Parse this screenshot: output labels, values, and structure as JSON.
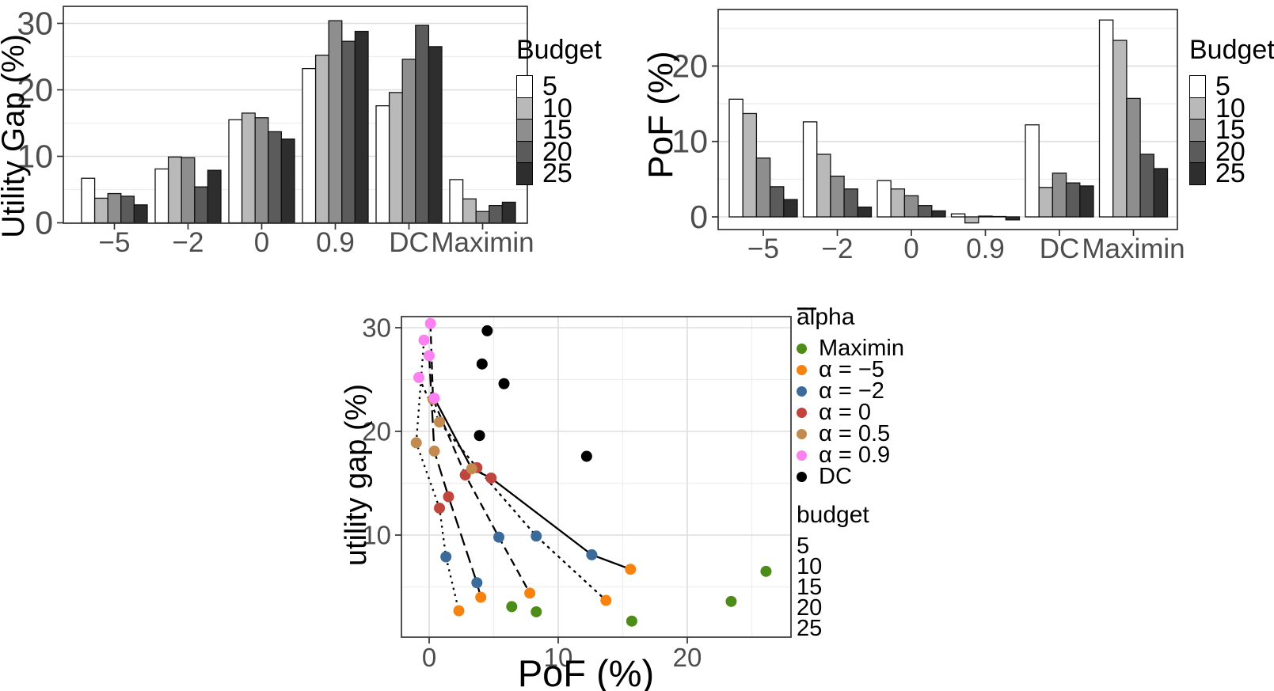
{
  "figure": {
    "background": "#ffffff",
    "tick_label_color": "#4d4d4d",
    "panel_border_color": "#333333",
    "grid_major_color": "#dedede",
    "grid_minor_color": "#eeeeee"
  },
  "chart_data": [
    {
      "id": "utility_gap_bars",
      "type": "bar",
      "ylabel": "Utility Gap (%)",
      "categories": [
        "−5",
        "−2",
        "0",
        "0.9",
        "DC",
        "Maximin"
      ],
      "legend": {
        "title": "Budget",
        "labels": [
          "5",
          "10",
          "15",
          "20",
          "25"
        ]
      },
      "fills": [
        "#ffffff",
        "#b9b9b9",
        "#8e8e8e",
        "#5b5b5b",
        "#2e2e2e"
      ],
      "series": [
        {
          "name": "5",
          "values": [
            6.7,
            8.1,
            15.5,
            23.2,
            17.6,
            6.5
          ]
        },
        {
          "name": "10",
          "values": [
            3.7,
            9.9,
            16.5,
            25.2,
            19.6,
            3.6
          ]
        },
        {
          "name": "15",
          "values": [
            4.4,
            9.8,
            15.8,
            30.4,
            24.6,
            1.7
          ]
        },
        {
          "name": "20",
          "values": [
            4.0,
            5.4,
            13.7,
            27.3,
            29.7,
            2.6
          ]
        },
        {
          "name": "25",
          "values": [
            2.7,
            7.9,
            12.6,
            28.8,
            26.5,
            3.1
          ]
        }
      ],
      "y_ticks": [
        0,
        10,
        20,
        30
      ],
      "y_minor": [
        5,
        15,
        25
      ],
      "ylim": [
        0,
        32.5
      ],
      "grid": true
    },
    {
      "id": "pof_bars",
      "type": "bar",
      "ylabel": "PoF (%)",
      "categories": [
        "−5",
        "−2",
        "0",
        "0.9",
        "DC",
        "Maximin"
      ],
      "legend": {
        "title": "Budget",
        "labels": [
          "5",
          "10",
          "15",
          "20",
          "25"
        ]
      },
      "fills": [
        "#ffffff",
        "#b9b9b9",
        "#8e8e8e",
        "#5b5b5b",
        "#2e2e2e"
      ],
      "series": [
        {
          "name": "5",
          "values": [
            15.6,
            12.6,
            4.8,
            0.4,
            12.2,
            26.1
          ]
        },
        {
          "name": "10",
          "values": [
            13.7,
            8.3,
            3.7,
            -0.8,
            3.9,
            23.4
          ]
        },
        {
          "name": "15",
          "values": [
            7.8,
            5.4,
            2.8,
            0.1,
            5.8,
            15.7
          ]
        },
        {
          "name": "20",
          "values": [
            4.0,
            3.7,
            1.5,
            0.05,
            4.5,
            8.3
          ]
        },
        {
          "name": "25",
          "values": [
            2.3,
            1.3,
            0.8,
            -0.4,
            4.1,
            6.4
          ]
        }
      ],
      "y_ticks": [
        0,
        10,
        20
      ],
      "y_minor": [
        5,
        15,
        25
      ],
      "ylim": [
        -1.7,
        27.5
      ],
      "grid": true
    },
    {
      "id": "tradeoff_scatter",
      "type": "scatter",
      "xlabel": "PoF (%)",
      "ylabel": "utility gap (%)",
      "x_ticks": [
        0,
        10,
        20
      ],
      "x_minor": [
        5,
        15,
        25
      ],
      "y_ticks": [
        10,
        20,
        30
      ],
      "y_minor": [
        5,
        15,
        25
      ],
      "xlim": [
        -2.3,
        28.0
      ],
      "ylim": [
        0.15,
        31.1
      ],
      "grid": true,
      "legend_alpha": {
        "title": "alpha"
      },
      "legend_budget": {
        "title": "budget",
        "entries": [
          {
            "label": "5",
            "linetype": "solid"
          },
          {
            "label": "10",
            "linetype": "dash22"
          },
          {
            "label": "15",
            "linetype": "dash"
          },
          {
            "label": "20",
            "linetype": "longdash"
          },
          {
            "label": "25",
            "linetype": "dotted"
          }
        ]
      },
      "budgets": [
        5,
        10,
        15,
        20,
        25
      ],
      "series": [
        {
          "name": "Maximin",
          "color": "#4c8c17",
          "connected": false,
          "points": [
            [
              26.1,
              6.5
            ],
            [
              23.4,
              3.6
            ],
            [
              15.7,
              1.7
            ],
            [
              8.3,
              2.6
            ],
            [
              6.4,
              3.1
            ]
          ]
        },
        {
          "name": "α = −5",
          "color": "#f8820e",
          "connected": true,
          "points": [
            [
              15.6,
              6.7
            ],
            [
              13.7,
              3.7
            ],
            [
              7.8,
              4.4
            ],
            [
              4.0,
              4.0
            ],
            [
              2.3,
              2.7
            ]
          ]
        },
        {
          "name": "α = −2",
          "color": "#3a6b9b",
          "connected": true,
          "points": [
            [
              12.6,
              8.1
            ],
            [
              8.3,
              9.9
            ],
            [
              5.4,
              9.8
            ],
            [
              3.7,
              5.4
            ],
            [
              1.3,
              7.9
            ]
          ]
        },
        {
          "name": "α = 0",
          "color": "#c0453c",
          "connected": true,
          "points": [
            [
              4.8,
              15.5
            ],
            [
              3.7,
              16.5
            ],
            [
              2.8,
              15.8
            ],
            [
              1.5,
              13.7
            ],
            [
              0.8,
              12.6
            ]
          ]
        },
        {
          "name": "α = 0.5",
          "color": "#c28a4f",
          "connected": true,
          "points": [
            [
              3.3,
              16.4
            ],
            [
              0.8,
              20.9
            ],
            [
              0.3,
              23.1
            ],
            [
              0.4,
              18.1
            ],
            [
              -1.0,
              18.9
            ]
          ]
        },
        {
          "name": "α = 0.9",
          "color": "#fb80f0",
          "connected": true,
          "points": [
            [
              0.4,
              23.2
            ],
            [
              -0.8,
              25.2
            ],
            [
              0.1,
              30.4
            ],
            [
              0.0,
              27.3
            ],
            [
              -0.4,
              28.8
            ]
          ]
        },
        {
          "name": "DC",
          "color": "#000000",
          "connected": false,
          "points": [
            [
              12.2,
              17.6
            ],
            [
              3.9,
              19.6
            ],
            [
              5.8,
              24.6
            ],
            [
              4.5,
              29.7
            ],
            [
              4.1,
              26.5
            ]
          ]
        }
      ],
      "line_series_order": [
        "α = 0.9",
        "α = 0.5",
        "α = 0",
        "α = −2",
        "α = −5"
      ]
    }
  ]
}
